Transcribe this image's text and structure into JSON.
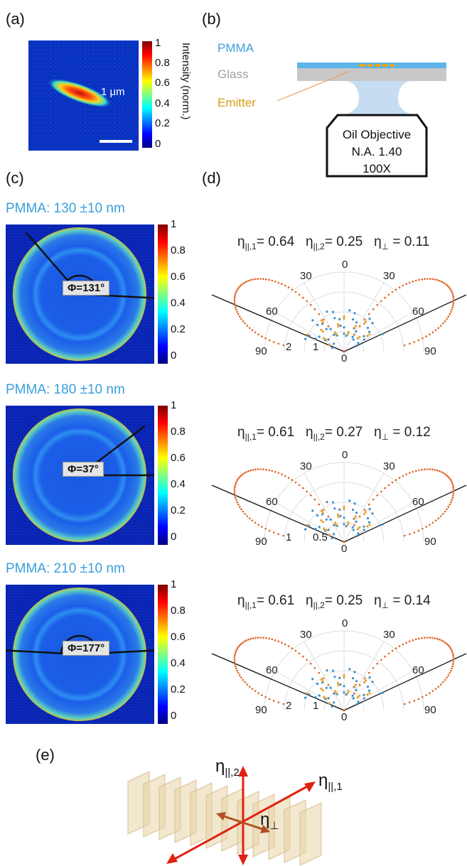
{
  "panels": {
    "a": "(a)",
    "b": "(b)",
    "c": "(c)",
    "d": "(d)",
    "e": "(e)"
  },
  "panel_a": {
    "colorbar_label": "Intensity (norm.)",
    "colorbar_ticks": [
      "1",
      "0.8",
      "0.6",
      "0.4",
      "0.2",
      "0"
    ],
    "scale_bar": "1 μm"
  },
  "panel_b": {
    "layers": [
      "PMMA",
      "Glass",
      "Emitter"
    ],
    "objective_lines": [
      "Oil Objective",
      "N.A. 1.40",
      "100X"
    ],
    "colors": {
      "pmma": "#3aa0dd",
      "glass": "#a8a8a8",
      "emitter": "#d4a017"
    }
  },
  "panel_c": {
    "rows": [
      {
        "label": "PMMA: 130 ±10 nm",
        "phi": "Φ=131°",
        "phi_deg": 131
      },
      {
        "label": "PMMA: 180 ±10 nm",
        "phi": "Φ=37°",
        "phi_deg": 37
      },
      {
        "label": "PMMA: 210 ±10 nm",
        "phi": "Φ=177°",
        "phi_deg": 177
      }
    ],
    "colorbar_ticks": [
      "1",
      "0.8",
      "0.6",
      "0.4",
      "0.2",
      "0"
    ]
  },
  "panel_d": {
    "rows": [
      {
        "eta_par1": "0.64",
        "eta_par2": "0.25",
        "eta_perp": "0.11",
        "angle_labels": [
          "0",
          "30",
          "30",
          "60",
          "60",
          "90",
          "90"
        ],
        "radial_labels": [
          "2",
          "1",
          "0"
        ]
      },
      {
        "eta_par1": "0.61",
        "eta_par2": "0.27",
        "eta_perp": "0.12",
        "angle_labels": [
          "0",
          "30",
          "30",
          "60",
          "60",
          "90",
          "90"
        ],
        "radial_labels": [
          "1",
          "0.5",
          "0"
        ]
      },
      {
        "eta_par1": "0.61",
        "eta_par2": "0.25",
        "eta_perp": "0.14",
        "angle_labels": [
          "0",
          "30",
          "30",
          "60",
          "60",
          "90",
          "90"
        ],
        "radial_labels": [
          "2",
          "1",
          "0"
        ]
      }
    ],
    "eta_symbol": "η",
    "sub_par1": "||,1",
    "sub_par2": "||,2",
    "sub_perp": "⊥",
    "colors": {
      "measured": "#e8a02a",
      "fit": "#e06020",
      "blue": "#3a8fd0"
    }
  },
  "panel_e": {
    "label_par2": "||,2",
    "label_par1": "||,1",
    "label_perp": "⊥",
    "eta_symbol": "η",
    "colors": {
      "arrow": "#e02010",
      "plane": "#e8d3a8"
    }
  }
}
